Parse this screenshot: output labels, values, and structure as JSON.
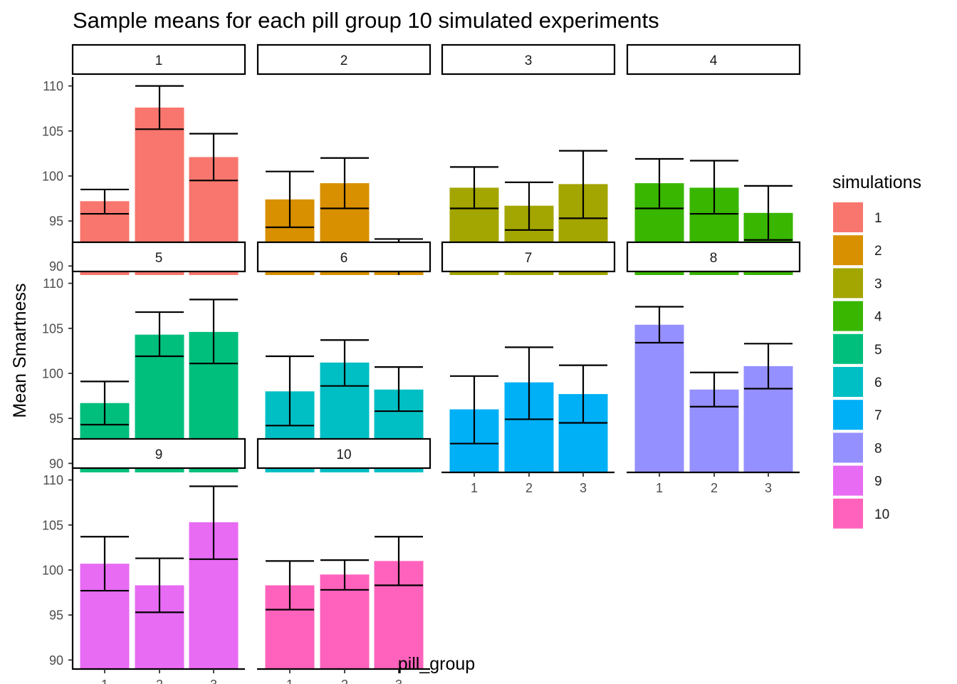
{
  "chart_data": {
    "type": "bar",
    "title": "Sample means for each pill group 10 simulated experiments",
    "xlabel": "pill_group",
    "ylabel": "Mean Smartness",
    "categories": [
      "1",
      "2",
      "3"
    ],
    "y_ticks": [
      "90",
      "95",
      "100",
      "105",
      "110"
    ],
    "ylim": [
      89,
      111
    ],
    "grid": false,
    "legend_title": "simulations",
    "legend_position": "right",
    "facet_layout": "4 columns, 3 rows",
    "error_bars": "mean ± standard error",
    "panels": [
      {
        "label": "1",
        "color": "#F8766D",
        "values": [
          97.2,
          107.6,
          102.1
        ],
        "err_low": [
          95.8,
          105.2,
          99.5
        ],
        "err_high": [
          98.5,
          110.0,
          104.7
        ]
      },
      {
        "label": "2",
        "color": "#D89000",
        "values": [
          97.4,
          99.2,
          90.3
        ],
        "err_low": [
          94.3,
          96.4,
          87.6
        ],
        "err_high": [
          100.5,
          102.0,
          93.0
        ]
      },
      {
        "label": "3",
        "color": "#A3A500",
        "values": [
          98.7,
          96.7,
          99.1
        ],
        "err_low": [
          96.4,
          94.0,
          95.3
        ],
        "err_high": [
          101.0,
          99.3,
          102.8
        ]
      },
      {
        "label": "4",
        "color": "#39B600",
        "values": [
          99.2,
          98.7,
          95.9
        ],
        "err_low": [
          96.4,
          95.8,
          92.9
        ],
        "err_high": [
          101.9,
          101.7,
          98.9
        ]
      },
      {
        "label": "5",
        "color": "#00BF7D",
        "values": [
          96.7,
          104.3,
          104.6
        ],
        "err_low": [
          94.3,
          101.9,
          101.1
        ],
        "err_high": [
          99.1,
          106.8,
          108.2
        ]
      },
      {
        "label": "6",
        "color": "#00BFC4",
        "values": [
          98.0,
          101.2,
          98.2
        ],
        "err_low": [
          94.2,
          98.6,
          95.8
        ],
        "err_high": [
          101.9,
          103.7,
          100.7
        ]
      },
      {
        "label": "7",
        "color": "#00B0F6",
        "values": [
          96.0,
          99.0,
          97.7
        ],
        "err_low": [
          92.2,
          94.9,
          94.5
        ],
        "err_high": [
          99.7,
          102.9,
          100.9
        ]
      },
      {
        "label": "8",
        "color": "#9590FF",
        "values": [
          105.4,
          98.2,
          100.8
        ],
        "err_low": [
          103.4,
          96.3,
          98.3
        ],
        "err_high": [
          107.4,
          100.1,
          103.3
        ]
      },
      {
        "label": "9",
        "color": "#E76BF3",
        "values": [
          100.7,
          98.3,
          105.3
        ],
        "err_low": [
          97.7,
          95.3,
          101.2
        ],
        "err_high": [
          103.7,
          101.3,
          109.3
        ]
      },
      {
        "label": "10",
        "color": "#FF62BC",
        "values": [
          98.3,
          99.5,
          101.0
        ],
        "err_low": [
          95.6,
          97.8,
          98.3
        ],
        "err_high": [
          101.0,
          101.1,
          103.7
        ]
      }
    ]
  }
}
